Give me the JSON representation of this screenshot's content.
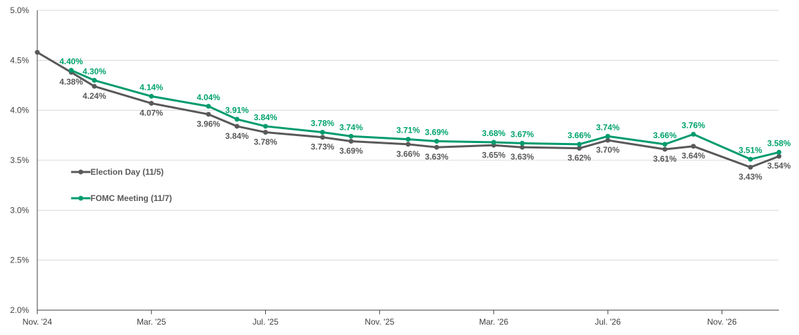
{
  "chart_data": {
    "type": "line",
    "title": "",
    "xlabel": "",
    "ylabel": "",
    "ylim": [
      2.0,
      5.0
    ],
    "y_ticks": [
      "2.0%",
      "2.5%",
      "3.0%",
      "3.5%",
      "4.0%",
      "4.5%",
      "5.0%"
    ],
    "x_ticks": [
      "Nov. '24",
      "Mar. '25",
      "Jul. '25",
      "Nov. '25",
      "Mar. '26",
      "Jul. '26",
      "Nov. '26"
    ],
    "x_tick_months": [
      0,
      4,
      8,
      12,
      16,
      20,
      24
    ],
    "grid": "horizontal",
    "legend_position": "left-center",
    "series": [
      {
        "name": "Election Day (11/5)",
        "color": "#595959",
        "label_color": "#595959",
        "label_position": "below",
        "x": [
          0,
          1.19,
          2.0,
          4.0,
          6.0,
          7.0,
          8.0,
          10.0,
          11.0,
          13.0,
          14.0,
          16.0,
          17.0,
          19.0,
          20.0,
          22.0,
          23.0,
          25.0,
          26.0
        ],
        "values": [
          4.58,
          4.38,
          4.24,
          4.07,
          3.96,
          3.84,
          3.78,
          3.73,
          3.69,
          3.66,
          3.63,
          3.65,
          3.63,
          3.62,
          3.7,
          3.61,
          3.64,
          3.43,
          3.54
        ],
        "labels": [
          "",
          "4.38%",
          "4.24%",
          "4.07%",
          "3.96%",
          "3.84%",
          "3.78%",
          "3.73%",
          "3.69%",
          "3.66%",
          "3.63%",
          "3.65%",
          "3.63%",
          "3.62%",
          "3.70%",
          "3.61%",
          "3.64%",
          "3.43%",
          "3.54%"
        ]
      },
      {
        "name": "FOMC Meeting (11/7)",
        "color": "#009B6E",
        "label_color": "#00A36C",
        "label_position": "above",
        "x": [
          1.19,
          2.0,
          4.0,
          6.0,
          7.0,
          8.0,
          10.0,
          11.0,
          13.0,
          14.0,
          16.0,
          17.0,
          19.0,
          20.0,
          22.0,
          23.0,
          25.0,
          26.0
        ],
        "values": [
          4.4,
          4.3,
          4.14,
          4.04,
          3.91,
          3.84,
          3.78,
          3.74,
          3.71,
          3.69,
          3.68,
          3.67,
          3.66,
          3.74,
          3.66,
          3.76,
          3.51,
          3.58
        ],
        "labels": [
          "4.40%",
          "4.30%",
          "4.14%",
          "4.04%",
          "3.91%",
          "3.84%",
          "3.78%",
          "3.74%",
          "3.71%",
          "3.69%",
          "3.68%",
          "3.67%",
          "3.66%",
          "3.74%",
          "3.66%",
          "3.76%",
          "3.51%",
          "3.58%"
        ]
      }
    ]
  }
}
